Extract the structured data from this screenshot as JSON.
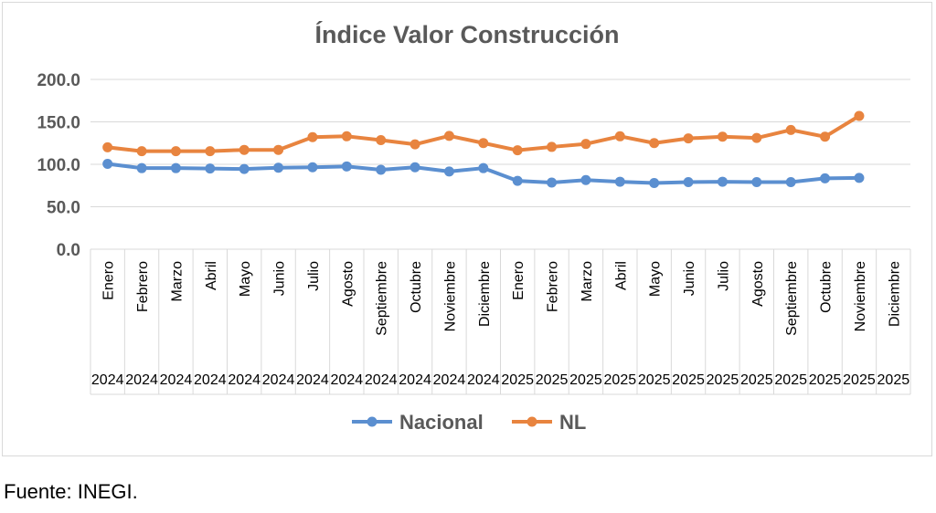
{
  "chart_data": {
    "type": "line",
    "title": "Índice Valor Construcción",
    "xlabel": "",
    "ylabel": "",
    "ylim": [
      0,
      200
    ],
    "yticks": [
      "0.0",
      "50.0",
      "100.0",
      "150.0",
      "200.0"
    ],
    "months": [
      "Enero",
      "Febrero",
      "Marzo",
      "Abril",
      "Mayo",
      "Junio",
      "Julio",
      "Agosto",
      "Septiembre",
      "Octubre",
      "Noviembre",
      "Diciembre",
      "Enero",
      "Febrero",
      "Marzo",
      "Abril",
      "Mayo",
      "Junio",
      "Julio",
      "Agosto",
      "Septiembre",
      "Octubre",
      "Noviembre",
      "Diciembre"
    ],
    "years": [
      "2024",
      "2024",
      "2024",
      "2024",
      "2024",
      "2024",
      "2024",
      "2024",
      "2024",
      "2024",
      "2024",
      "2024",
      "2025",
      "2025",
      "2025",
      "2025",
      "2025",
      "2025",
      "2025",
      "2025",
      "2025",
      "2025",
      "2025",
      "2025"
    ],
    "grid": true,
    "legend": "bottom-center",
    "series": [
      {
        "name": "Nacional",
        "color": "#5b8fd0",
        "values": [
          100.5,
          95.5,
          95.5,
          95.0,
          94.5,
          96.0,
          96.5,
          97.5,
          93.5,
          96.5,
          91.5,
          95.5,
          80.5,
          78.5,
          81.5,
          79.5,
          78.0,
          79.0,
          79.5,
          79.0,
          79.0,
          83.5,
          84.0,
          null
        ]
      },
      {
        "name": "NL",
        "color": "#e8843f",
        "values": [
          120.0,
          115.5,
          115.5,
          115.5,
          117.0,
          117.0,
          132.0,
          133.0,
          128.5,
          123.5,
          133.5,
          125.0,
          116.5,
          120.5,
          124.0,
          133.0,
          125.0,
          130.5,
          132.5,
          131.0,
          140.5,
          132.5,
          157.0,
          null
        ]
      }
    ]
  },
  "source_note": "Fuente: INEGI."
}
